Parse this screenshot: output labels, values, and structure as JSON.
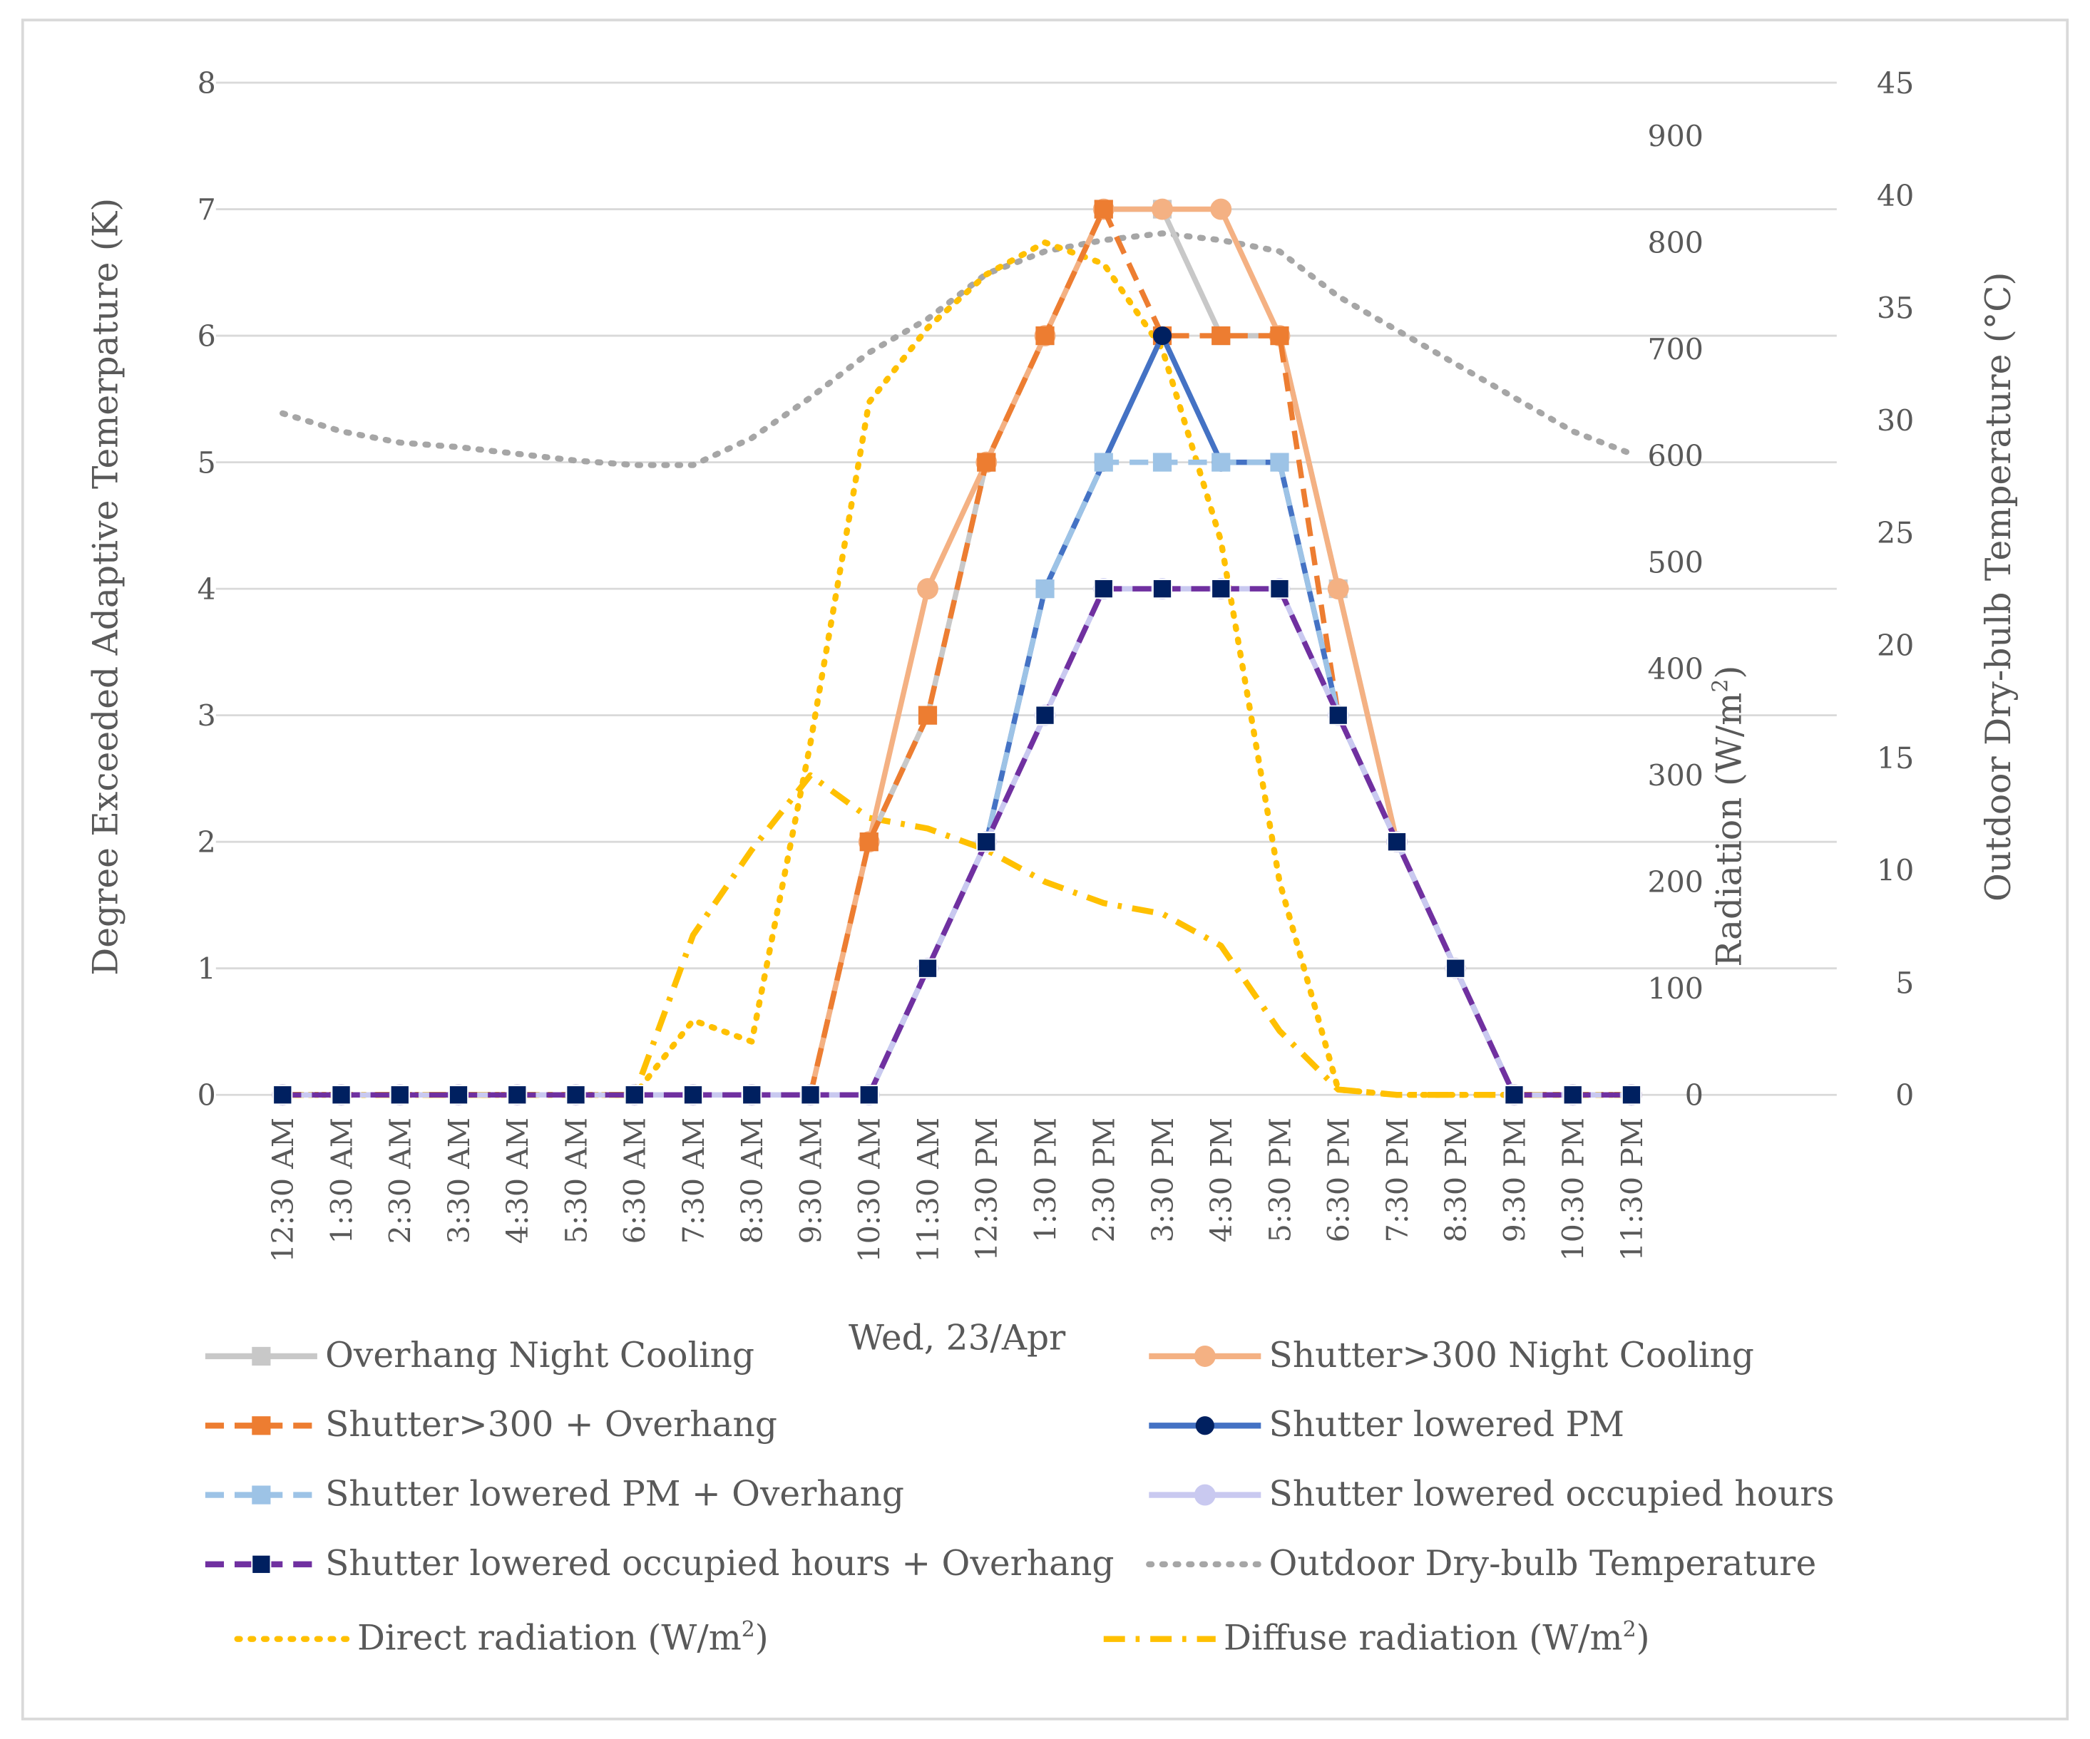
{
  "chart_data": {
    "type": "line",
    "title": "",
    "xlabel": "Wed, 23/Apr",
    "ylabel_left": "Degree Exceeded Adaptive  Temerpature (K)",
    "ylabel_radiation_prefix": "Radiation (W/m",
    "ylabel_radiation_sup": "2",
    "ylabel_radiation_suffix": ")",
    "ylabel_right": "Outdoor Dry-bulb Temperature (°C)",
    "x": [
      "12:30 AM",
      "1:30 AM",
      "2:30 AM",
      "3:30 AM",
      "4:30 AM",
      "5:30 AM",
      "6:30 AM",
      "7:30 AM",
      "8:30 AM",
      "9:30 AM",
      "10:30 AM",
      "11:30 AM",
      "12:30 PM",
      "1:30 PM",
      "2:30 PM",
      "3:30 PM",
      "4:30 PM",
      "5:30 PM",
      "6:30 PM",
      "7:30 PM",
      "8:30 PM",
      "9:30 PM",
      "10:30 PM",
      "11:30 PM"
    ],
    "ylim_left": [
      0,
      8
    ],
    "yticks_left": [
      "0",
      "1",
      "2",
      "3",
      "4",
      "5",
      "6",
      "7",
      "8"
    ],
    "ylim_radiation": [
      0,
      950
    ],
    "yticks_radiation": [
      "0",
      "100",
      "200",
      "300",
      "400",
      "500",
      "600",
      "700",
      "800",
      "900"
    ],
    "ylim_right": [
      0,
      45
    ],
    "yticks_right": [
      "0",
      "5",
      "10",
      "15",
      "20",
      "25",
      "30",
      "35",
      "40",
      "45"
    ],
    "grid": true,
    "legend_position": "bottom",
    "series": [
      {
        "name": "Overhang Night Cooling",
        "axis": "left",
        "color": "#c8c8c8",
        "style": "solid",
        "marker": "square",
        "values": [
          0,
          0,
          0,
          0,
          0,
          0,
          0,
          0,
          0,
          0,
          2,
          3,
          5,
          6,
          7,
          7,
          6,
          6,
          4,
          2,
          1,
          0,
          0,
          0
        ]
      },
      {
        "name": "Shutter>300 Night Cooling",
        "axis": "left",
        "color": "#f4b183",
        "style": "solid",
        "marker": "circle",
        "values": [
          0,
          0,
          0,
          0,
          0,
          0,
          0,
          0,
          0,
          0,
          2,
          4,
          5,
          6,
          7,
          7,
          7,
          6,
          4,
          2,
          1,
          0,
          0,
          0
        ]
      },
      {
        "name": "Shutter>300 + Overhang",
        "axis": "left",
        "color": "#ed7d31",
        "style": "dashed",
        "marker": "square",
        "values": [
          0,
          0,
          0,
          0,
          0,
          0,
          0,
          0,
          0,
          0,
          2,
          3,
          5,
          6,
          7,
          6,
          6,
          6,
          3,
          2,
          1,
          0,
          0,
          0
        ]
      },
      {
        "name": "Shutter lowered PM",
        "axis": "left",
        "color": "#4472c4",
        "style": "solid",
        "marker": "circle-dark",
        "values": [
          0,
          0,
          0,
          0,
          0,
          0,
          0,
          0,
          0,
          0,
          0,
          1,
          2,
          4,
          5,
          6,
          5,
          5,
          3,
          2,
          1,
          0,
          0,
          0
        ]
      },
      {
        "name": "Shutter lowered PM + Overhang",
        "axis": "left",
        "color": "#9dc3e6",
        "style": "dashed",
        "marker": "square",
        "values": [
          0,
          0,
          0,
          0,
          0,
          0,
          0,
          0,
          0,
          0,
          0,
          1,
          2,
          4,
          5,
          5,
          5,
          5,
          3,
          2,
          1,
          0,
          0,
          0
        ]
      },
      {
        "name": "Shutter lowered occupied hours",
        "axis": "left",
        "color": "#c9c9f0",
        "style": "solid",
        "marker": "circle",
        "values": [
          0,
          0,
          0,
          0,
          0,
          0,
          0,
          0,
          0,
          0,
          0,
          1,
          2,
          3,
          4,
          4,
          4,
          4,
          3,
          2,
          1,
          0,
          0,
          0
        ]
      },
      {
        "name": "Shutter lowered occupied hours + Overhang",
        "axis": "left",
        "color": "#7030a0",
        "style": "dashed",
        "marker": "square-dark",
        "values": [
          0,
          0,
          0,
          0,
          0,
          0,
          0,
          0,
          0,
          0,
          0,
          1,
          2,
          3,
          4,
          4,
          4,
          4,
          3,
          2,
          1,
          0,
          0,
          0
        ]
      },
      {
        "name": "Outdoor Dry-bulb Temperature",
        "axis": "right",
        "color": "#a6a6a6",
        "style": "dotted",
        "marker": "none",
        "values": [
          30.3,
          29.5,
          29.0,
          28.8,
          28.5,
          28.2,
          28.0,
          28.0,
          29.2,
          31.0,
          33.0,
          34.5,
          36.5,
          37.5,
          38.0,
          38.3,
          38.0,
          37.5,
          35.5,
          34.0,
          32.5,
          31.0,
          29.5,
          28.5
        ]
      },
      {
        "name": "Direct radiation (W/m²)",
        "axis": "radiation",
        "color": "#ffc000",
        "style": "dotted",
        "marker": "none",
        "values": [
          0,
          0,
          0,
          0,
          0,
          0,
          0,
          70,
          50,
          330,
          650,
          720,
          770,
          800,
          780,
          700,
          520,
          200,
          5,
          0,
          0,
          0,
          0,
          0
        ]
      },
      {
        "name": "Diffuse radiation (W/m²)",
        "axis": "radiation",
        "color": "#ffc000",
        "style": "dashdot",
        "marker": "none",
        "values": [
          0,
          0,
          0,
          0,
          0,
          0,
          0,
          150,
          230,
          300,
          260,
          250,
          230,
          200,
          180,
          170,
          140,
          60,
          5,
          0,
          0,
          0,
          0,
          0
        ]
      }
    ],
    "legend": [
      {
        "label": "Overhang Night Cooling"
      },
      {
        "label": "Shutter>300 Night Cooling"
      },
      {
        "label": "Shutter>300 + Overhang"
      },
      {
        "label": "Shutter lowered PM"
      },
      {
        "label": "Shutter lowered PM + Overhang"
      },
      {
        "label": "Shutter lowered occupied hours"
      },
      {
        "label": "Shutter lowered occupied hours + Overhang"
      },
      {
        "label": "Outdoor Dry-bulb Temperature"
      },
      {
        "label": "Direct radiation (W/m",
        "sup": "2",
        "suffix": ")"
      },
      {
        "label": "Diffuse radiation (W/m",
        "sup": "2",
        "suffix": ")"
      }
    ]
  }
}
